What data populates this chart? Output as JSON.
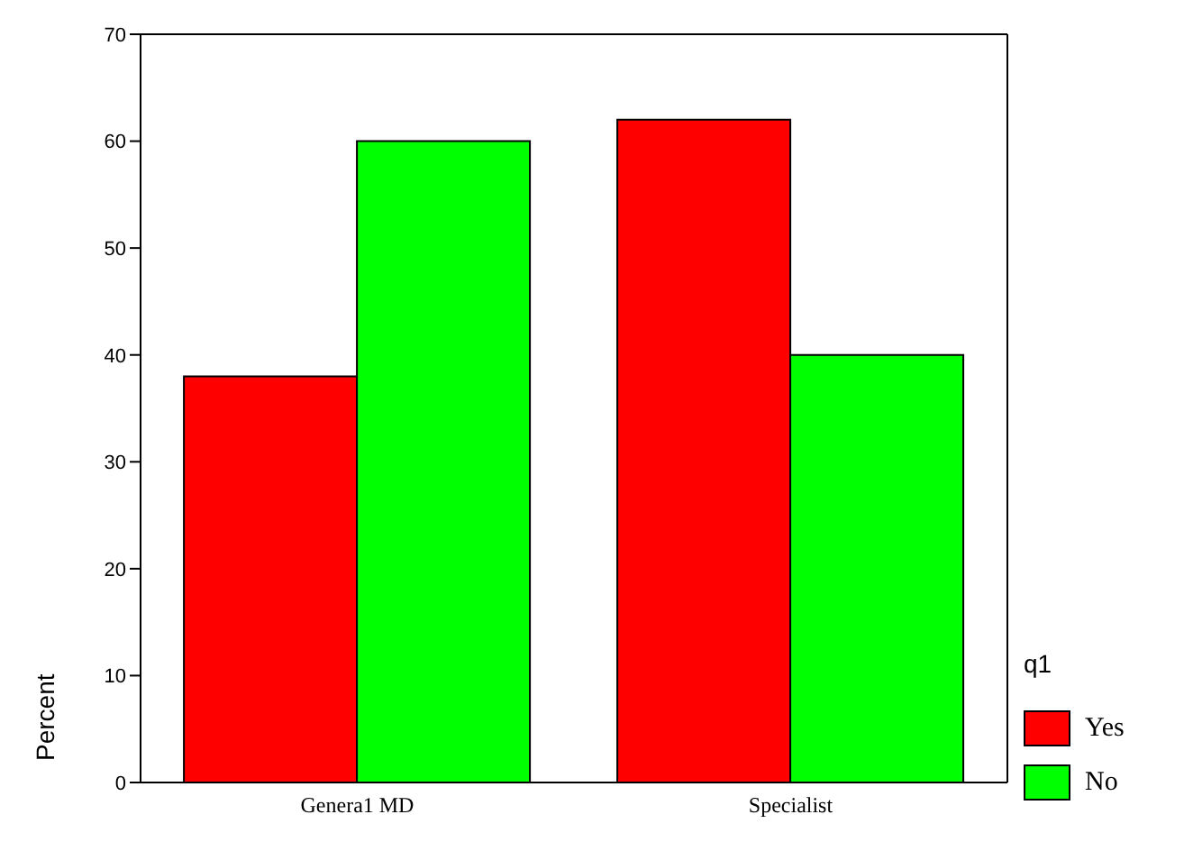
{
  "chart_data": {
    "type": "bar",
    "categories": [
      "Genera1 MD",
      "Specialist"
    ],
    "series": [
      {
        "name": "Yes",
        "color": "#ff0000",
        "values": [
          38,
          62
        ]
      },
      {
        "name": "No",
        "color": "#00ff00",
        "values": [
          60,
          40
        ]
      }
    ],
    "ylabel": "Percent",
    "legend_title": "q1",
    "legend": "bottom right",
    "ylim": [
      0,
      70
    ],
    "yticks": [
      0,
      10,
      20,
      30,
      40,
      50,
      60,
      70
    ],
    "grid": false
  }
}
